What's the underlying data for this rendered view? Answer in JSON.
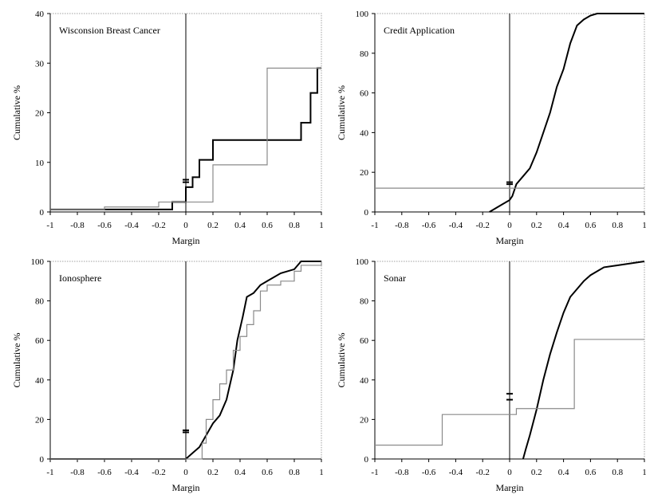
{
  "colors": {
    "dark_series": "#000000",
    "light_series": "#8a8a8a",
    "frame": "#a0a0a0",
    "axis": "#000000"
  },
  "chart_data": [
    {
      "type": "line",
      "title": "Wisconsion Breast Cancer",
      "xlabel": "Margin",
      "ylabel": "Cumulative %",
      "xlim": [
        -1,
        1
      ],
      "ylim": [
        0,
        40
      ],
      "xticks": [
        "-1",
        "-0.8",
        "-0.6",
        "-0.4",
        "-0.2",
        "0",
        "0.2",
        "0.4",
        "0.6",
        "0.8",
        "1"
      ],
      "yticks": [
        "0",
        "10",
        "20",
        "30",
        "40"
      ],
      "grid": false,
      "series": [
        {
          "style": "dark",
          "step": true,
          "x": [
            -1,
            -0.6,
            -0.1,
            -0.05,
            0,
            0.05,
            0.1,
            0.2,
            0.8,
            0.85,
            0.92,
            0.97,
            1
          ],
          "y": [
            0.5,
            0.5,
            2,
            2,
            5,
            7,
            10.5,
            14.5,
            14.5,
            18,
            24,
            29,
            29
          ]
        },
        {
          "style": "light",
          "step": true,
          "x": [
            -1,
            -0.6,
            -0.2,
            0.2,
            0.6,
            1
          ],
          "y": [
            0.5,
            1,
            2,
            9.5,
            29,
            29
          ]
        }
      ],
      "markers": {
        "x": 0,
        "y": [
          6.5,
          6.0
        ]
      }
    },
    {
      "type": "line",
      "title": "Credit Application",
      "xlabel": "Margin",
      "ylabel": "Cumulative %",
      "xlim": [
        -1,
        1
      ],
      "ylim": [
        0,
        100
      ],
      "xticks": [
        "-1",
        "-0.8",
        "-0.6",
        "-0.4",
        "-0.2",
        "0",
        "0.2",
        "0.4",
        "0.6",
        "0.8",
        "1"
      ],
      "yticks": [
        "0",
        "20",
        "40",
        "60",
        "80",
        "100"
      ],
      "grid": false,
      "series": [
        {
          "style": "dark",
          "step": false,
          "x": [
            -0.15,
            -0.1,
            -0.05,
            0,
            0.02,
            0.05,
            0.1,
            0.15,
            0.2,
            0.25,
            0.3,
            0.35,
            0.4,
            0.45,
            0.5,
            0.55,
            0.6,
            0.65,
            0.7,
            1
          ],
          "y": [
            0,
            2,
            4,
            6,
            8,
            14,
            18,
            22,
            30,
            40,
            50,
            63,
            72,
            85,
            94,
            97,
            99,
            100,
            100,
            100
          ]
        },
        {
          "style": "light",
          "step": true,
          "x": [
            -1,
            1
          ],
          "y": [
            12,
            12
          ]
        }
      ],
      "markers": {
        "x": 0,
        "y": [
          15,
          14
        ]
      }
    },
    {
      "type": "line",
      "title": "Ionosphere",
      "xlabel": "Margin",
      "ylabel": "Cumulative %",
      "xlim": [
        -1,
        1
      ],
      "ylim": [
        0,
        100
      ],
      "xticks": [
        "-1",
        "-0.8",
        "-0.6",
        "-0.4",
        "-0.2",
        "0",
        "0.2",
        "0.4",
        "0.6",
        "0.8",
        "1"
      ],
      "yticks": [
        "0",
        "20",
        "40",
        "60",
        "80",
        "100"
      ],
      "grid": false,
      "series": [
        {
          "style": "dark",
          "step": false,
          "x": [
            -1,
            0,
            0.05,
            0.1,
            0.15,
            0.2,
            0.25,
            0.3,
            0.35,
            0.38,
            0.42,
            0.45,
            0.5,
            0.55,
            0.6,
            0.7,
            0.8,
            0.85,
            1
          ],
          "y": [
            0,
            0,
            3,
            6,
            12,
            18,
            22,
            30,
            45,
            60,
            72,
            82,
            84,
            88,
            90,
            94,
            96,
            100,
            100
          ]
        },
        {
          "style": "light",
          "step": true,
          "x": [
            -1,
            0.1,
            0.12,
            0.15,
            0.2,
            0.25,
            0.3,
            0.35,
            0.4,
            0.45,
            0.5,
            0.55,
            0.6,
            0.7,
            0.8,
            0.85,
            1
          ],
          "y": [
            0,
            0,
            8,
            20,
            30,
            38,
            45,
            55,
            62,
            68,
            75,
            85,
            88,
            90,
            95,
            98,
            100
          ]
        }
      ],
      "markers": {
        "x": 0,
        "y": [
          14.5,
          13.5
        ]
      }
    },
    {
      "type": "line",
      "title": "Sonar",
      "xlabel": "Margin",
      "ylabel": "Cumulative %",
      "xlim": [
        -1,
        1
      ],
      "ylim": [
        0,
        100
      ],
      "xticks": [
        "-1",
        "-0.8",
        "-0.6",
        "-0.4",
        "-0.2",
        "0",
        "0.2",
        "0.4",
        "0.6",
        "0.8",
        "1"
      ],
      "yticks": [
        "0",
        "20",
        "40",
        "60",
        "80",
        "100"
      ],
      "grid": false,
      "series": [
        {
          "style": "dark",
          "step": false,
          "x": [
            0.1,
            0.12,
            0.15,
            0.2,
            0.25,
            0.3,
            0.35,
            0.4,
            0.45,
            0.5,
            0.55,
            0.6,
            0.65,
            0.7,
            0.8,
            0.9,
            1
          ],
          "y": [
            0,
            5,
            12,
            25,
            40,
            53,
            64,
            74,
            82,
            86,
            90,
            93,
            95,
            97,
            98,
            99,
            100
          ]
        },
        {
          "style": "light",
          "step": true,
          "x": [
            -1,
            -0.5,
            0,
            0.05,
            0.48,
            1
          ],
          "y": [
            7,
            22.5,
            22.5,
            25.5,
            60.5,
            60.5
          ]
        }
      ],
      "markers": {
        "x": 0,
        "y": [
          33,
          30
        ]
      }
    }
  ]
}
